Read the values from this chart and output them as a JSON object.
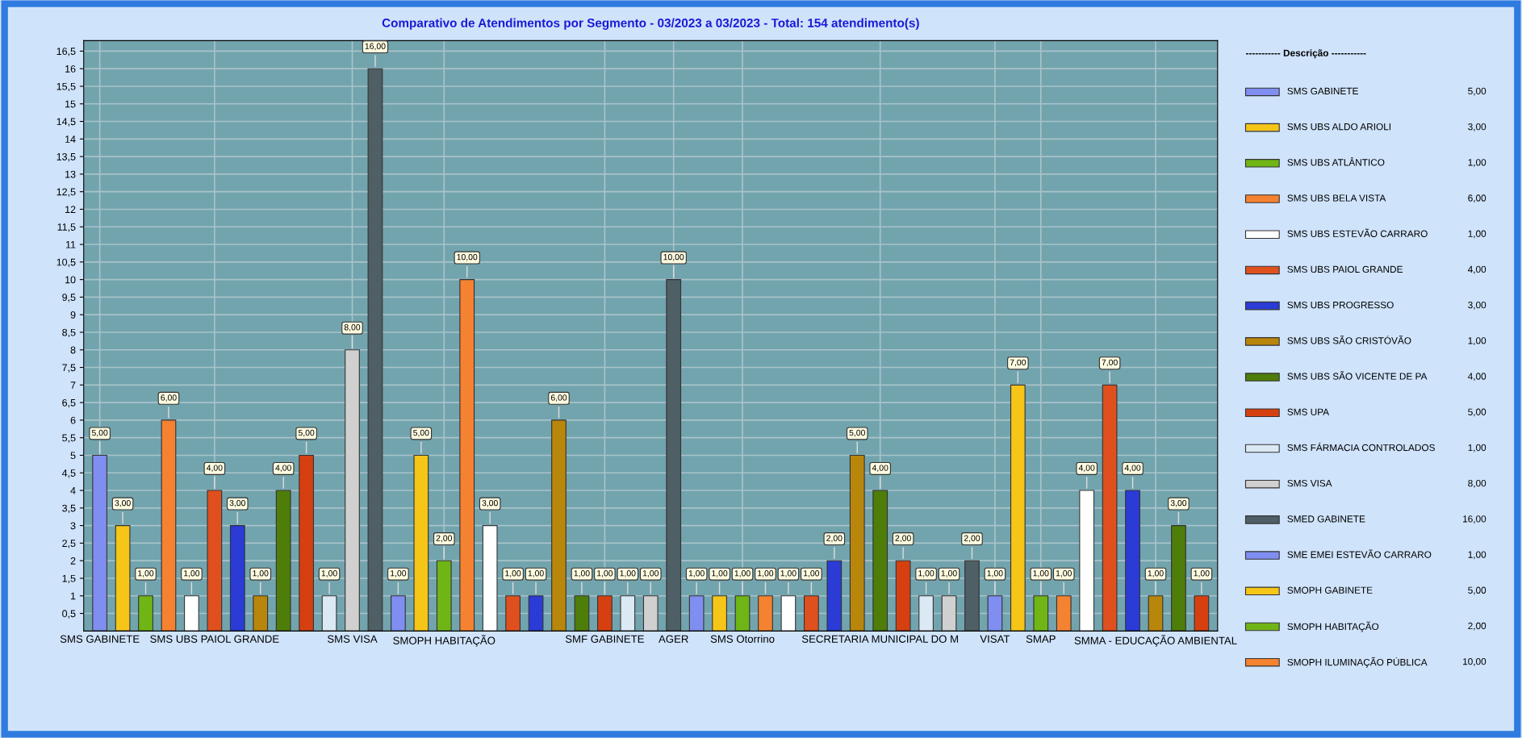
{
  "chart_data": {
    "type": "bar",
    "title": "Comparativo de Atendimentos por Segmento - 03/2023 a 03/2023 - Total: 154 atendimento(s)",
    "categories": [
      "SMS GABINETE",
      null,
      null,
      null,
      null,
      "SMS UBS PAIOL GRANDE",
      null,
      null,
      null,
      null,
      null,
      "SMS VISA",
      null,
      null,
      null,
      "SMOPH HABITAÇÃO",
      null,
      null,
      null,
      null,
      null,
      null,
      "SMF GABINETE",
      null,
      null,
      "AGER",
      null,
      null,
      "SMS Otorrino",
      null,
      null,
      null,
      null,
      null,
      "SECRETARIA MUNICIPAL DO M",
      null,
      null,
      null,
      null,
      "VISAT",
      null,
      "SMAP",
      null,
      null,
      null,
      null,
      "SMMA - EDUCAÇÃO AMBIENTAL",
      null,
      null
    ],
    "values": [
      5,
      3,
      1,
      6,
      1,
      4,
      3,
      1,
      4,
      5,
      1,
      8,
      16,
      1,
      5,
      2,
      10,
      3,
      1,
      1,
      6,
      1,
      1,
      1,
      1,
      10,
      1,
      1,
      1,
      1,
      1,
      1,
      2,
      5,
      4,
      2,
      1,
      1,
      2,
      1,
      7,
      1,
      1,
      4,
      7,
      4,
      1,
      3,
      1
    ],
    "value_labels": [
      "5,00",
      "3,00",
      "1,00",
      "6,00",
      "1,00",
      "4,00",
      "3,00",
      "1,00",
      "4,00",
      "5,00",
      "1,00",
      "8,00",
      "16,00",
      "1,00",
      "5,00",
      "2,00",
      "10,00",
      "3,00",
      "1,00",
      "1,00",
      "6,00",
      "1,00",
      "1,00",
      "1,00",
      "1,00",
      "10,00",
      "1,00",
      "1,00",
      "1,00",
      "1,00",
      "1,00",
      "1,00",
      "2,00",
      "5,00",
      "4,00",
      "2,00",
      "1,00",
      "1,00",
      "2,00",
      "1,00",
      "7,00",
      "1,00",
      "1,00",
      "4,00",
      "7,00",
      "4,00",
      "1,00",
      "3,00",
      "1,00"
    ],
    "colors": [
      "#7f8ef0",
      "#f5c518",
      "#6fb516",
      "#f58231",
      "#ffffff",
      "#e0501f",
      "#2a3bd6",
      "#b8860b",
      "#4e7d0a",
      "#d64010",
      "#dbe9f5",
      "#d0d0d0",
      "#4f5f66",
      "#7f8ef0",
      "#f5c518",
      "#6fb516",
      "#f58231",
      "#ffffff",
      "#e0501f",
      "#2a3bd6",
      "#b8860b",
      "#4e7d0a",
      "#d64010",
      "#dbe9f5",
      "#d0d0d0",
      "#4f5f66",
      "#7f8ef0",
      "#f5c518",
      "#6fb516",
      "#f58231",
      "#ffffff",
      "#e0501f",
      "#2a3bd6",
      "#b8860b",
      "#4e7d0a",
      "#d64010",
      "#dbe9f5",
      "#d0d0d0",
      "#4f5f66",
      "#7f8ef0",
      "#f5c518",
      "#6fb516",
      "#f58231",
      "#ffffff",
      "#e0501f",
      "#2a3bd6",
      "#b8860b",
      "#4e7d0a",
      "#d64010"
    ],
    "legend_title": "----------- Descrição -----------",
    "annotations": [
      "SMS GABINETE",
      "SMS UBS ALDO ARIOLI",
      "SMS UBS ATLÂNTICO",
      "SMS UBS BELA VISTA",
      "SMS UBS ESTEVÃO CARRARO",
      "SMS UBS PAIOL GRANDE",
      "SMS UBS PROGRESSO",
      "SMS UBS SÃO CRISTÓVÃO",
      "SMS UBS SÃO VICENTE DE PA",
      "SMS UPA",
      "SMS FÁRMACIA CONTROLADOS",
      "SMS VISA",
      "SMED GABINETE",
      "SME EMEI ESTEVÃO CARRARO",
      "SMOPH GABINETE",
      "SMOPH HABITAÇÃO",
      "SMOPH ILUMINAÇÃO PÚBLICA"
    ],
    "ylim": [
      0,
      16.8
    ],
    "yticks": [
      {
        "value": 0.5,
        "label": "0,5"
      },
      1,
      {
        "value": 1.5,
        "label": "1,5"
      },
      2,
      {
        "value": 2.5,
        "label": "2,5"
      },
      3,
      {
        "value": 3.5,
        "label": "3,5"
      },
      4,
      {
        "value": 4.5,
        "label": "4,5"
      },
      5,
      {
        "value": 5.5,
        "label": "5,5"
      },
      6,
      {
        "value": 6.5,
        "label": "6,5"
      },
      7,
      {
        "value": 7.5,
        "label": "7,5"
      },
      8,
      {
        "value": 8.5,
        "label": "8,5"
      },
      9,
      {
        "value": 9.5,
        "label": "9,5"
      },
      10,
      {
        "value": 10.5,
        "label": "10,5"
      },
      11,
      {
        "value": 11.5,
        "label": "11,5"
      },
      12,
      {
        "value": 12.5,
        "label": "12,5"
      },
      13,
      {
        "value": 13.5,
        "label": "13,5"
      },
      14,
      {
        "value": 14.5,
        "label": "14,5"
      },
      15,
      {
        "value": 15.5,
        "label": "15,5"
      },
      16,
      {
        "value": 16.5,
        "label": "16,5"
      }
    ],
    "grid": true
  }
}
